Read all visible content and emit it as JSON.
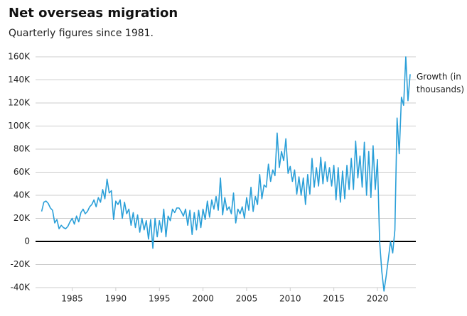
{
  "chart_data": {
    "type": "line",
    "title": "Net overseas migration",
    "subtitle": "Quarterly figures since 1981.",
    "x": [
      1981.5,
      1981.75,
      1982,
      1982.25,
      1982.5,
      1982.75,
      1983,
      1983.25,
      1983.5,
      1983.75,
      1984,
      1984.25,
      1984.5,
      1984.75,
      1985,
      1985.25,
      1985.5,
      1985.75,
      1986,
      1986.25,
      1986.5,
      1986.75,
      1987,
      1987.25,
      1987.5,
      1987.75,
      1988,
      1988.25,
      1988.5,
      1988.75,
      1989,
      1989.25,
      1989.5,
      1989.75,
      1990,
      1990.25,
      1990.5,
      1990.75,
      1991,
      1991.25,
      1991.5,
      1991.75,
      1992,
      1992.25,
      1992.5,
      1992.75,
      1993,
      1993.25,
      1993.5,
      1993.75,
      1994,
      1994.25,
      1994.5,
      1994.75,
      1995,
      1995.25,
      1995.5,
      1995.75,
      1996,
      1996.25,
      1996.5,
      1996.75,
      1997,
      1997.25,
      1997.5,
      1997.75,
      1998,
      1998.25,
      1998.5,
      1998.75,
      1999,
      1999.25,
      1999.5,
      1999.75,
      2000,
      2000.25,
      2000.5,
      2000.75,
      2001,
      2001.25,
      2001.5,
      2001.75,
      2002,
      2002.25,
      2002.5,
      2002.75,
      2003,
      2003.25,
      2003.5,
      2003.75,
      2004,
      2004.25,
      2004.5,
      2004.75,
      2005,
      2005.25,
      2005.5,
      2005.75,
      2006,
      2006.25,
      2006.5,
      2006.75,
      2007,
      2007.25,
      2007.5,
      2007.75,
      2008,
      2008.25,
      2008.5,
      2008.75,
      2009,
      2009.25,
      2009.5,
      2009.75,
      2010,
      2010.25,
      2010.5,
      2010.75,
      2011,
      2011.25,
      2011.5,
      2011.75,
      2012,
      2012.25,
      2012.5,
      2012.75,
      2013,
      2013.25,
      2013.5,
      2013.75,
      2014,
      2014.25,
      2014.5,
      2014.75,
      2015,
      2015.25,
      2015.5,
      2015.75,
      2016,
      2016.25,
      2016.5,
      2016.75,
      2017,
      2017.25,
      2017.5,
      2017.75,
      2018,
      2018.25,
      2018.5,
      2018.75,
      2019,
      2019.25,
      2019.5,
      2019.75,
      2020,
      2020.25,
      2020.5,
      2020.75,
      2021,
      2021.25,
      2021.5,
      2021.75,
      2022,
      2022.25,
      2022.5,
      2022.75,
      2023,
      2023.25,
      2023.5,
      2023.75
    ],
    "series": [
      {
        "name": "Growth (in thousands)",
        "color": "#2a9fd8",
        "values": [
          26,
          34,
          35,
          33,
          29,
          27,
          16,
          19,
          11,
          14,
          12,
          11,
          13,
          17,
          20,
          15,
          22,
          17,
          25,
          28,
          24,
          26,
          30,
          32,
          36,
          30,
          38,
          34,
          45,
          37,
          54,
          42,
          44,
          19,
          35,
          32,
          36,
          20,
          34,
          24,
          28,
          14,
          25,
          12,
          23,
          8,
          20,
          10,
          18,
          2,
          19,
          -6,
          20,
          4,
          18,
          8,
          28,
          4,
          22,
          18,
          28,
          25,
          29,
          29,
          26,
          22,
          28,
          14,
          27,
          6,
          25,
          10,
          27,
          12,
          28,
          19,
          35,
          21,
          36,
          28,
          39,
          27,
          55,
          23,
          38,
          27,
          30,
          24,
          42,
          16,
          28,
          24,
          30,
          20,
          38,
          27,
          47,
          26,
          39,
          32,
          58,
          37,
          49,
          47,
          67,
          52,
          62,
          57,
          94,
          64,
          78,
          70,
          89,
          59,
          65,
          52,
          62,
          41,
          56,
          40,
          55,
          32,
          58,
          41,
          72,
          47,
          64,
          48,
          73,
          50,
          69,
          52,
          64,
          48,
          66,
          36,
          64,
          34,
          61,
          37,
          66,
          45,
          72,
          45,
          87,
          55,
          74,
          47,
          86,
          40,
          78,
          38,
          83,
          45,
          71,
          0,
          -26,
          -43,
          -30,
          -15,
          0,
          -10,
          10,
          107,
          76,
          125,
          118,
          160,
          122,
          145
        ]
      }
    ],
    "xlim": [
      1980.8,
      2024.4
    ],
    "xticks": [
      1985,
      1990,
      1995,
      2000,
      2005,
      2010,
      2015,
      2020
    ],
    "ylim": [
      -40,
      160
    ],
    "yticks": [
      {
        "value": 160,
        "label": "160K"
      },
      {
        "value": 140,
        "label": "140K"
      },
      {
        "value": 120,
        "label": "120K"
      },
      {
        "value": 100,
        "label": "100K"
      },
      {
        "value": 80,
        "label": "80K"
      },
      {
        "value": 60,
        "label": "60K"
      },
      {
        "value": 40,
        "label": "40K"
      },
      {
        "value": 20,
        "label": "20K"
      },
      {
        "value": 0,
        "label": "0"
      },
      {
        "value": -20,
        "label": "-20K"
      },
      {
        "value": -40,
        "label": "-40K"
      }
    ],
    "grid": true
  }
}
